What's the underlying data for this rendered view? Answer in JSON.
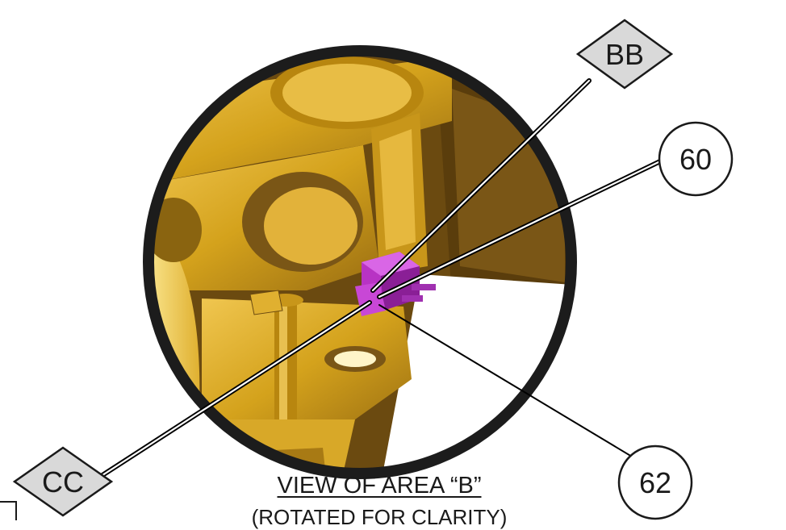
{
  "callouts": {
    "bb": "BB",
    "cc": "CC",
    "c60": "60",
    "c62": "62"
  },
  "caption": {
    "title": "VIEW OF AREA “B”",
    "subtitle": "(ROTATED FOR CLARITY)"
  },
  "colors": {
    "ring": "#1c1c1c",
    "casting": "#d4a21c",
    "casting_dark": "#8a6410",
    "interior": "#5a3d0c",
    "component": "#b833c4",
    "diamond_fill": "#d9d9d9"
  },
  "icons": {
    "detail_view": "magnified-detail-circle",
    "part_highlight": "magenta-bracket-part"
  }
}
